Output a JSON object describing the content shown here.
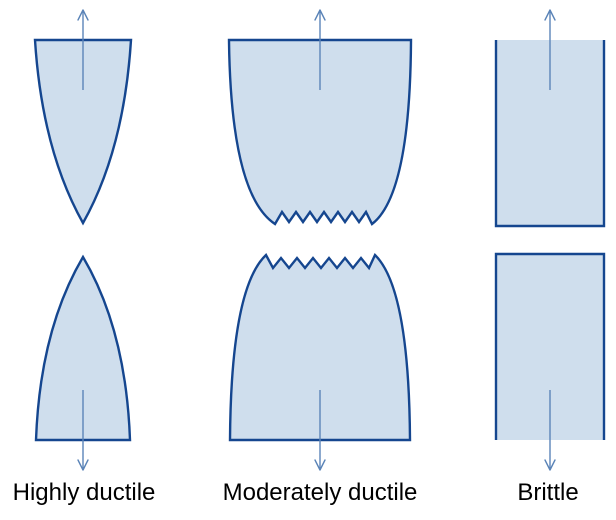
{
  "labels": {
    "highly_ductile": "Highly ductile",
    "moderately_ductile": "Moderately ductile",
    "brittle": "Brittle"
  },
  "colors": {
    "specimen_fill": "#cfdeed",
    "specimen_outline": "#15468f",
    "load_arrow": "#5b84b8",
    "caption_text": "#000000"
  },
  "icons": {
    "load_arrow": "tension-arrow-icon"
  }
}
